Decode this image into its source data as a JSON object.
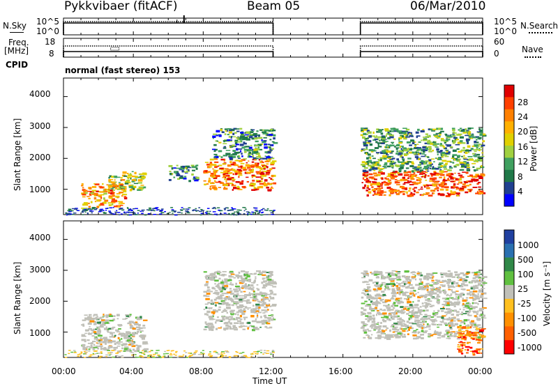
{
  "header": {
    "title": "Pykkvibaer (fitACF)",
    "beam": "Beam 05",
    "date": "06/Mar/2010"
  },
  "strips": {
    "nsky_label": "N.Sky",
    "nsky_ticks": [
      "10^5",
      "10^0"
    ],
    "nsearch_label": "N.Search",
    "nsearch_ticks": [
      "10^5",
      "10^0"
    ],
    "freq_label": "Freq.",
    "freq_unit": "[MHz]",
    "freq_ticks": [
      "18",
      "8"
    ],
    "nave_label": "Nave",
    "nave_ticks": [
      "60",
      "0"
    ],
    "cpid_label": "CPID",
    "cpid_value": "normal (fast stereo) 153"
  },
  "power_panel": {
    "ylabel": "Slant Range [km]",
    "yticks": [
      "4000",
      "3000",
      "2000",
      "1000"
    ],
    "cbar_label": "Power [dB]",
    "cbar_ticks": [
      "28",
      "24",
      "20",
      "16",
      "12",
      "8",
      "4"
    ],
    "cbar_colors": [
      "#e00000",
      "#ff4000",
      "#ff8000",
      "#ffb000",
      "#e0d000",
      "#a0d040",
      "#40a060",
      "#207848",
      "#204090",
      "#0000ff"
    ]
  },
  "velocity_panel": {
    "ylabel": "Slant Range [km]",
    "yticks": [
      "4000",
      "3000",
      "2000",
      "1000"
    ],
    "cbar_label": "Velocity [m s⁻¹]",
    "cbar_ticks": [
      "1000",
      "500",
      "100",
      "25",
      "-25",
      "-100",
      "-500",
      "-1000"
    ],
    "cbar_colors": [
      "#2040a0",
      "#2a70b0",
      "#308848",
      "#60c040",
      "#c0c0b8",
      "#ffc020",
      "#ff9000",
      "#ff6000",
      "#ff0000"
    ]
  },
  "xaxis": {
    "ticks": [
      "00:00",
      "04:00",
      "08:00",
      "12:00",
      "16:00",
      "20:00",
      "00:00"
    ],
    "label": "Time UT"
  },
  "chart_data": [
    {
      "type": "line",
      "title": "Pykkvibaer (fitACF)",
      "series": [
        {
          "name": "N.Sky",
          "x": [
            0,
            12,
            17,
            24
          ],
          "y": [
            5,
            5,
            5,
            5
          ]
        },
        {
          "name": "N.Search",
          "x": [
            0,
            12,
            17,
            24
          ],
          "y": [
            5,
            5,
            5,
            5
          ]
        },
        {
          "name": "Freq.",
          "x": [
            0,
            12,
            17,
            24
          ],
          "y": [
            10,
            10,
            10,
            10
          ]
        },
        {
          "name": "Nave",
          "x": [
            0,
            12,
            17,
            24
          ],
          "y": [
            28,
            28,
            28,
            28
          ]
        }
      ],
      "data_gap": [
        12,
        17
      ],
      "xlabel": "Time UT"
    },
    {
      "type": "heatmap",
      "title": "Power [dB]",
      "xlabel": "Time UT",
      "ylabel": "Slant Range [km]",
      "xlim": [
        0,
        24
      ],
      "ylim": [
        180,
        4600
      ],
      "zlim": [
        0,
        30
      ],
      "data_gap": [
        12,
        17
      ],
      "regions": [
        {
          "x": [
            1.0,
            3.5
          ],
          "y": [
            400,
            1200
          ],
          "z": 22
        },
        {
          "x": [
            2.5,
            4.6
          ],
          "y": [
            1000,
            1600
          ],
          "z": 16
        },
        {
          "x": [
            6.0,
            7.6
          ],
          "y": [
            1300,
            1800
          ],
          "z": 10
        },
        {
          "x": [
            8.0,
            12.0
          ],
          "y": [
            1000,
            2000
          ],
          "z": 24
        },
        {
          "x": [
            8.5,
            12.0
          ],
          "y": [
            2000,
            3000
          ],
          "z": 10
        },
        {
          "x": [
            17.0,
            24.0
          ],
          "y": [
            800,
            1600
          ],
          "z": 26
        },
        {
          "x": [
            17.0,
            24.0
          ],
          "y": [
            1600,
            3000
          ],
          "z": 12
        }
      ]
    },
    {
      "type": "heatmap",
      "title": "Velocity [m s⁻¹]",
      "xlabel": "Time UT",
      "ylabel": "Slant Range [km]",
      "xlim": [
        0,
        24
      ],
      "ylim": [
        180,
        4600
      ],
      "zlim": [
        -1000,
        1000
      ],
      "data_gap": [
        12,
        17
      ],
      "regions": [
        {
          "x": [
            1.0,
            4.6
          ],
          "y": [
            400,
            1600
          ],
          "z": 0
        },
        {
          "x": [
            8.0,
            12.0
          ],
          "y": [
            1100,
            3000
          ],
          "z": 0
        },
        {
          "x": [
            17.0,
            24.0
          ],
          "y": [
            800,
            3000
          ],
          "z": 0
        },
        {
          "x": [
            22.5,
            24.0
          ],
          "y": [
            300,
            1200
          ],
          "z": -500
        }
      ]
    }
  ]
}
